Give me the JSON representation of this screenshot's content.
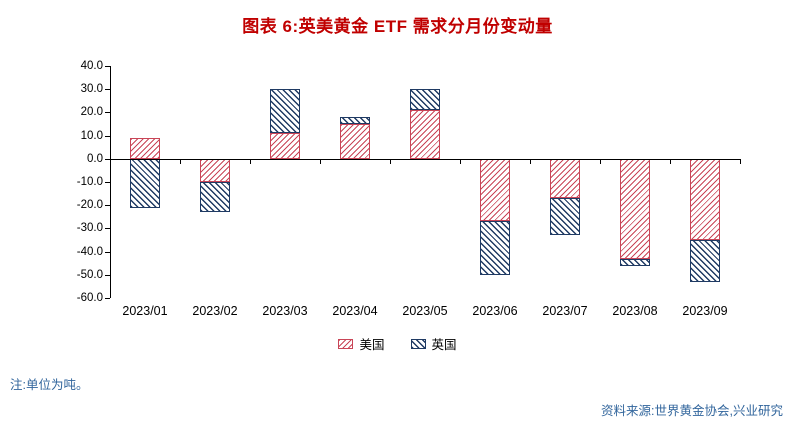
{
  "title": "图表 6:英美黄金 ETF 需求分月份变动量",
  "notes": {
    "unit": "注:单位为吨。",
    "source": "资料来源:世界黄金协会,兴业研究"
  },
  "colors": {
    "title": "#C00000",
    "note": "#31659C",
    "us": "#C94557",
    "uk": "#1F3A63",
    "axis": "#000000"
  },
  "chart_data": {
    "type": "bar",
    "stacked": true,
    "title": "图表 6:英美黄金 ETF 需求分月份变动量",
    "unit": "吨",
    "categories": [
      "2023/01",
      "2023/02",
      "2023/03",
      "2023/04",
      "2023/05",
      "2023/06",
      "2023/07",
      "2023/08",
      "2023/09"
    ],
    "series": [
      {
        "name": "美国",
        "hatch": "forward-diagonal",
        "color": "#C94557",
        "values": [
          9,
          -10,
          11,
          15,
          21,
          -27,
          -17,
          -43,
          -35
        ]
      },
      {
        "name": "英国",
        "hatch": "back-diagonal",
        "color": "#1F3A63",
        "values": [
          -21,
          -13,
          19,
          3,
          9,
          -23,
          -16,
          -3,
          -18
        ]
      }
    ],
    "ylim": [
      -60,
      40
    ],
    "ytick_step": 10,
    "y_tick_labels": [
      "40.0",
      "30.0",
      "20.0",
      "10.0",
      "0.0",
      "-10.0",
      "-20.0",
      "-30.0",
      "-40.0",
      "-50.0",
      "-60.0"
    ],
    "grid": false,
    "legend_position": "bottom"
  }
}
